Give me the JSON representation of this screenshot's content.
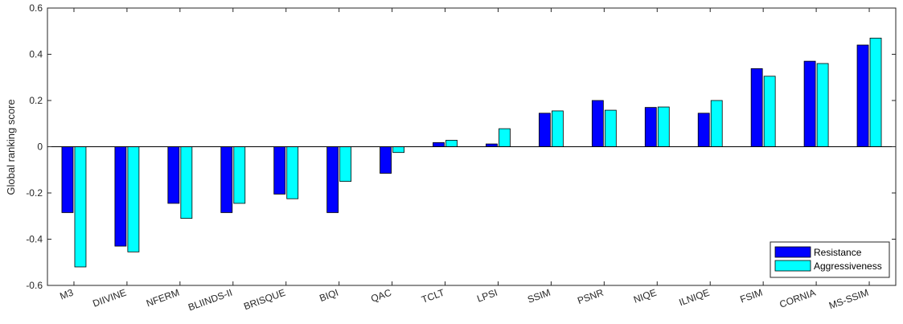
{
  "chart_data": {
    "type": "bar",
    "title": "",
    "xlabel": "",
    "ylabel": "Global ranking score",
    "ylim": [
      -0.6,
      0.6
    ],
    "yticks": [
      "-0.6",
      "-0.4",
      "-0.2",
      "0",
      "0.2",
      "0.4",
      "0.6"
    ],
    "ytick_values": [
      -0.6,
      -0.4,
      -0.2,
      0,
      0.2,
      0.4,
      0.6
    ],
    "grid": false,
    "legend_position": "bottom-right",
    "categories": [
      "M3",
      "DIIVINE",
      "NFERM",
      "BLIINDS-II",
      "BRISQUE",
      "BIQI",
      "QAC",
      "TCLT",
      "LPSI",
      "SSIM",
      "PSNR",
      "NIQE",
      "ILNIQE",
      "FSIM",
      "CORNIA",
      "MS-SSIM"
    ],
    "series": [
      {
        "name": "Resistance",
        "color": "#0000ff",
        "values": [
          -0.285,
          -0.43,
          -0.245,
          -0.285,
          -0.205,
          -0.285,
          -0.115,
          0.018,
          0.012,
          0.145,
          0.2,
          0.17,
          0.145,
          0.338,
          0.37,
          0.44
        ]
      },
      {
        "name": "Aggressiveness",
        "color": "#00ffff",
        "values": [
          -0.52,
          -0.455,
          -0.31,
          -0.245,
          -0.225,
          -0.15,
          -0.025,
          0.028,
          0.078,
          0.155,
          0.158,
          0.172,
          0.2,
          0.305,
          0.36,
          0.47
        ]
      }
    ]
  }
}
